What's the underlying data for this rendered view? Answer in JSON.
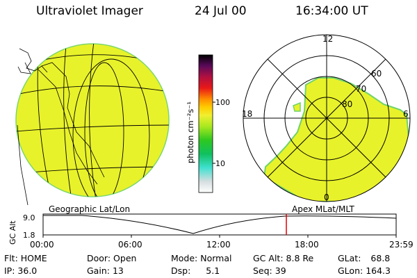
{
  "header": {
    "title": "Ultraviolet Imager",
    "date": "24 Jul 00",
    "time": "16:34:00 UT"
  },
  "colorbar": {
    "unit_label": "photon cm⁻²s⁻¹",
    "ticks": [
      "100",
      "10"
    ]
  },
  "polar_plot": {
    "mlt_labels": {
      "top": "12",
      "left": "18",
      "right": "6",
      "bottom": "0"
    },
    "lat_labels": [
      "80",
      "70",
      "60"
    ]
  },
  "panel_labels": {
    "left": "Geographic Lat/Lon",
    "right": "Apex MLat/MLT"
  },
  "altitude_plot": {
    "axis_label": "GC Alt",
    "y_max": "9.0",
    "y_min": "1.8",
    "x_ticks": [
      "00:00",
      "06:00",
      "12:00",
      "18:00",
      "23:59"
    ]
  },
  "status": {
    "flt": {
      "label": "Flt:",
      "value": "HOME"
    },
    "ip": {
      "label": "IP:",
      "value": "36.0"
    },
    "door": {
      "label": "Door:",
      "value": "Open"
    },
    "gain": {
      "label": "Gain:",
      "value": "13"
    },
    "mode": {
      "label": "Mode:",
      "value": "Normal"
    },
    "dsp": {
      "label": "Dsp:",
      "value": "5.1"
    },
    "gcalt": {
      "label": "GC Alt:",
      "value": "8.8 Re"
    },
    "seq": {
      "label": "Seq:",
      "value": "39"
    },
    "glat": {
      "label": "GLat:",
      "value": "68.8"
    },
    "glon": {
      "label": "GLon:",
      "value": "164.3"
    }
  },
  "colors": {
    "image_fill": "#e8f22a",
    "image_edge": "#6fd36b",
    "time_marker": "#e00000"
  }
}
